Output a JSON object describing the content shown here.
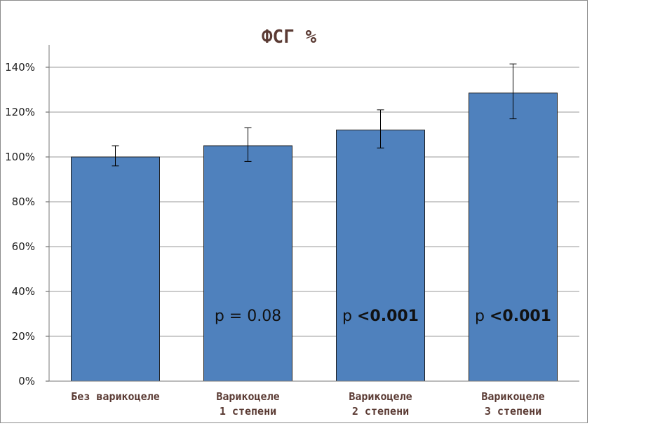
{
  "chart_data": {
    "type": "bar",
    "title": "ФСГ %",
    "xlabel": "",
    "ylabel": "",
    "ylim": [
      0,
      150
    ],
    "yticks": [
      "0%",
      "20%",
      "40%",
      "60%",
      "80%",
      "100%",
      "120%",
      "140%"
    ],
    "ytick_values": [
      0,
      20,
      40,
      60,
      80,
      100,
      120,
      140
    ],
    "grid": true,
    "legend": "none",
    "categories": [
      [
        "Без варикоцеле"
      ],
      [
        "Варикоцеле",
        "1 степени"
      ],
      [
        "Варикоцеле",
        "2 степени"
      ],
      [
        "Варикоцеле",
        "3 степени"
      ]
    ],
    "values": [
      100,
      105,
      112,
      128.5
    ],
    "errors": [
      [
        96,
        105
      ],
      [
        98,
        113
      ],
      [
        104,
        121
      ],
      [
        117,
        141.5
      ]
    ],
    "annotations": [
      null,
      {
        "prefix": "p = 0.08",
        "bold": ""
      },
      {
        "prefix": "p ",
        "bold": "<0.001"
      },
      {
        "prefix": "p ",
        "bold": "<0.001"
      }
    ],
    "colors": {
      "bar": "#4f81bd",
      "bar_edge": "#1f1f1f",
      "grid": "#9a9a9a",
      "title": "#5a3a33"
    }
  }
}
